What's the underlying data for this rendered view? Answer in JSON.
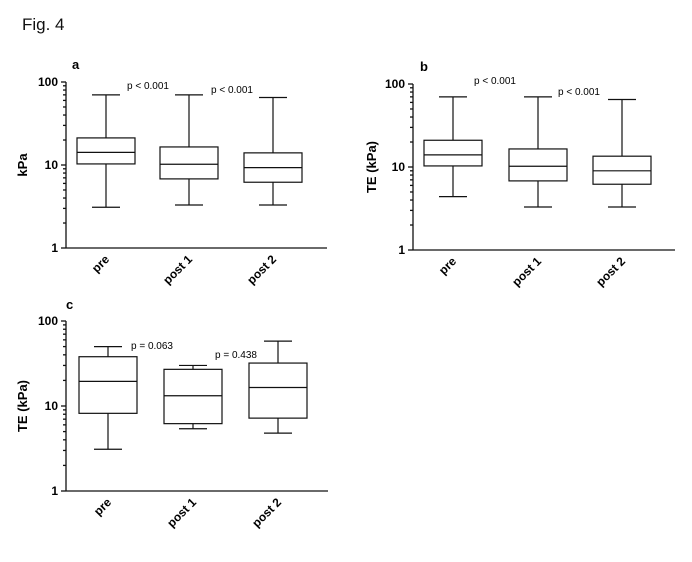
{
  "figure_title": "Fig. 4",
  "chart_data": [
    {
      "type": "box",
      "panel_label": "a",
      "ylabel": "kPa",
      "yscale": "log",
      "ylim": [
        1,
        100
      ],
      "yticks": [
        "1",
        "10",
        "100"
      ],
      "categories": [
        "pre",
        "post 1",
        "post 2"
      ],
      "boxes": [
        {
          "min": 3.1,
          "q1": 10.3,
          "median": 14.2,
          "q3": 21.2,
          "max": 70
        },
        {
          "min": 3.3,
          "q1": 6.8,
          "median": 10.2,
          "q3": 16.5,
          "max": 70
        },
        {
          "min": 3.3,
          "q1": 6.2,
          "median": 9.3,
          "q3": 14.0,
          "max": 65
        }
      ],
      "annotations": [
        {
          "text": "p < 0.001",
          "between": [
            0,
            1
          ],
          "at": 70
        },
        {
          "text": "p < 0.001",
          "between": [
            1,
            2
          ],
          "at": 62
        }
      ]
    },
    {
      "type": "box",
      "panel_label": "b",
      "ylabel": "TE (kPa)",
      "yscale": "log",
      "ylim": [
        1,
        100
      ],
      "yticks": [
        "1",
        "10",
        "100"
      ],
      "categories": [
        "pre",
        "post 1",
        "post 2"
      ],
      "boxes": [
        {
          "min": 4.4,
          "q1": 10.3,
          "median": 14.0,
          "q3": 21.0,
          "max": 70
        },
        {
          "min": 3.3,
          "q1": 6.8,
          "median": 10.2,
          "q3": 16.5,
          "max": 70
        },
        {
          "min": 3.3,
          "q1": 6.2,
          "median": 9.0,
          "q3": 13.5,
          "max": 65
        }
      ],
      "annotations": [
        {
          "text": "p < 0.001",
          "between": [
            0,
            1
          ],
          "at": 85
        },
        {
          "text": "p < 0.001",
          "between": [
            1,
            2
          ],
          "at": 62
        }
      ]
    },
    {
      "type": "box",
      "panel_label": "c",
      "ylabel": "TE (kPa)",
      "yscale": "log",
      "ylim": [
        1,
        100
      ],
      "yticks": [
        "1",
        "10",
        "100"
      ],
      "categories": [
        "pre",
        "post 1",
        "post 2"
      ],
      "boxes": [
        {
          "min": 3.1,
          "q1": 8.2,
          "median": 19.5,
          "q3": 38,
          "max": 50
        },
        {
          "min": 5.4,
          "q1": 6.2,
          "median": 13.2,
          "q3": 27,
          "max": 30
        },
        {
          "min": 4.8,
          "q1": 7.2,
          "median": 16.5,
          "q3": 32,
          "max": 58
        }
      ],
      "annotations": [
        {
          "text": "p = 0.063",
          "between": [
            0,
            1
          ],
          "at": 40
        },
        {
          "text": "p = 0.438",
          "between": [
            1,
            2
          ],
          "at": 31
        }
      ]
    }
  ]
}
